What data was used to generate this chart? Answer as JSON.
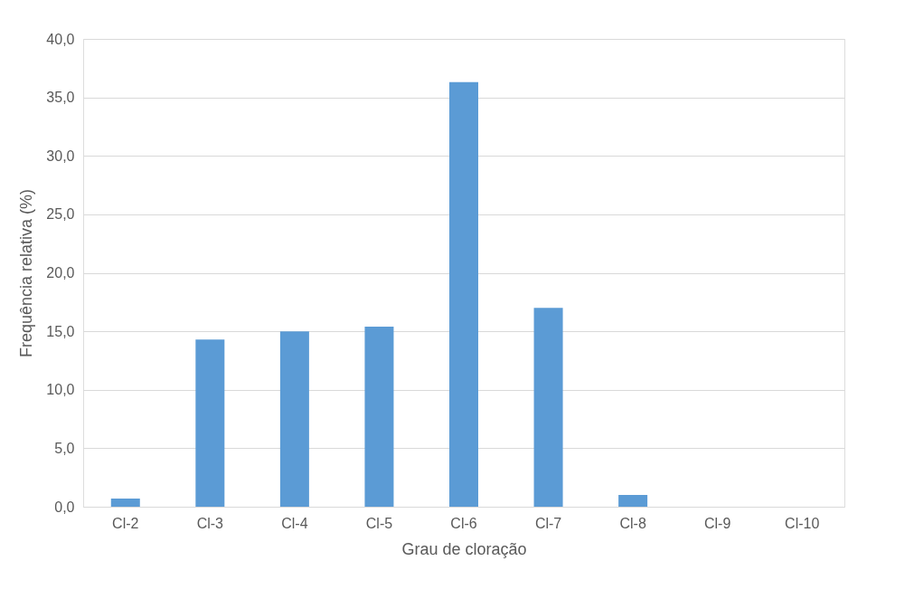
{
  "chart_data": {
    "type": "bar",
    "xlabel": "Grau de cloração",
    "ylabel": "Frequência relativa (%)",
    "categories": [
      "Cl-2",
      "Cl-3",
      "Cl-4",
      "Cl-5",
      "Cl-6",
      "Cl-7",
      "Cl-8",
      "Cl-9",
      "Cl-10"
    ],
    "values": [
      0.7,
      14.3,
      15.0,
      15.4,
      36.3,
      17.0,
      1.0,
      0,
      0
    ],
    "color": "#5b9bd5",
    "ylim": [
      0,
      40
    ],
    "yticks": [
      {
        "value": 0,
        "label": "0,0"
      },
      {
        "value": 5,
        "label": "5,0"
      },
      {
        "value": 10,
        "label": "10,0"
      },
      {
        "value": 15,
        "label": "15,0"
      },
      {
        "value": 20,
        "label": "20,0"
      },
      {
        "value": 25,
        "label": "25,0"
      },
      {
        "value": 30,
        "label": "30,0"
      },
      {
        "value": 35,
        "label": "35,0"
      },
      {
        "value": 40,
        "label": "40,0"
      }
    ],
    "grid": "y"
  }
}
